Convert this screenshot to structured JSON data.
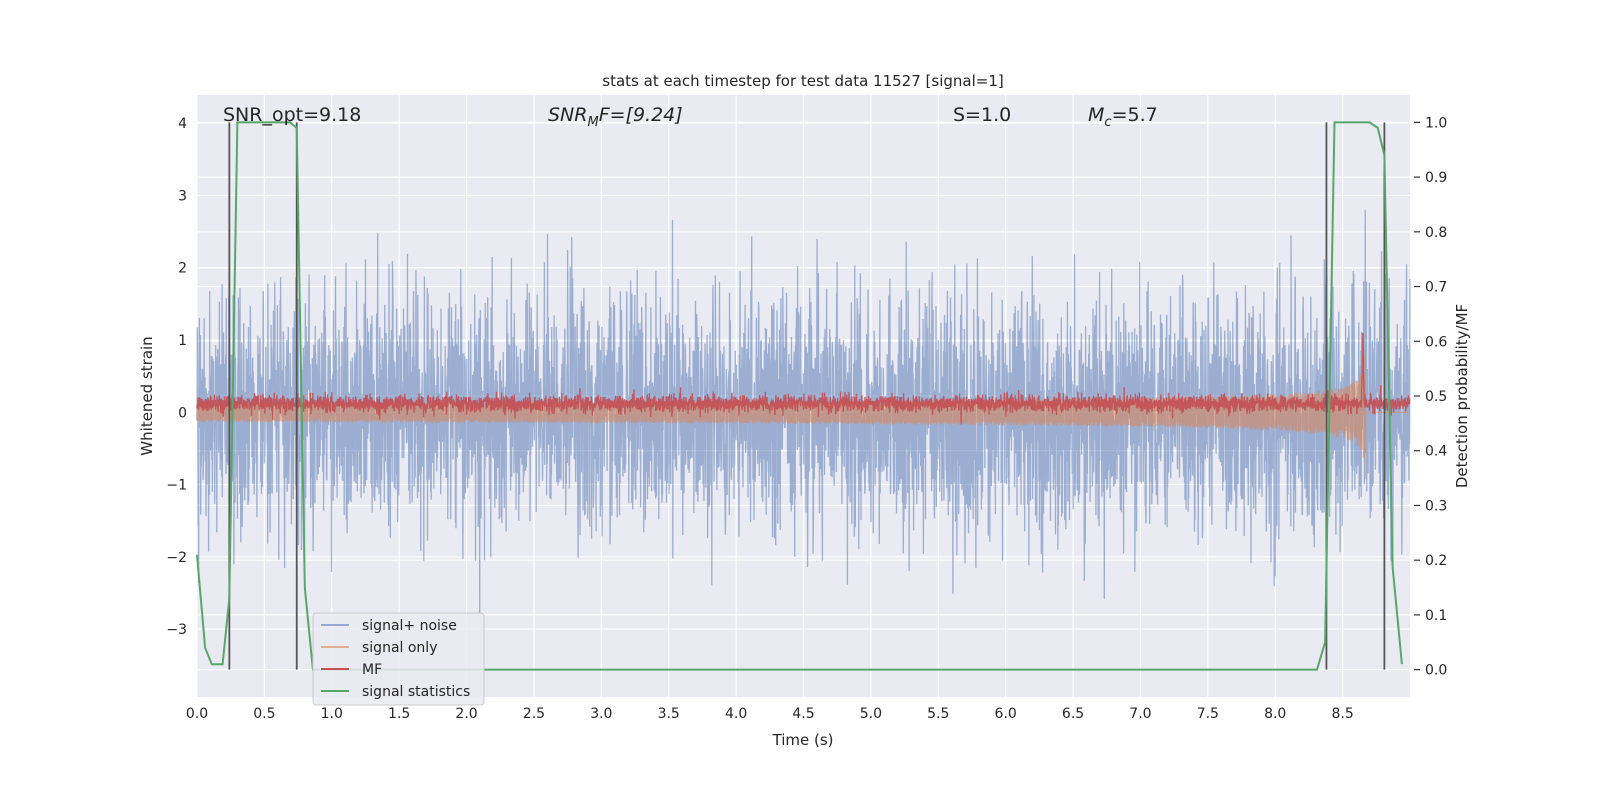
{
  "chart_data": {
    "type": "line",
    "title": "stats at each timestep for test data 11527 [signal=1]",
    "xlabel": "Time (s)",
    "ylabel": "Whitened strain",
    "ylabel_right": "Detection probability/MF",
    "xlim": [
      0,
      9.0
    ],
    "ylim": [
      -3.94,
      4.39
    ],
    "ylim_right": [
      -0.05,
      1.05
    ],
    "xticks": [
      "0.0",
      "0.5",
      "1.0",
      "1.5",
      "2.0",
      "2.5",
      "3.0",
      "3.5",
      "4.0",
      "4.5",
      "5.0",
      "5.5",
      "6.0",
      "6.5",
      "7.0",
      "7.5",
      "8.0",
      "8.5"
    ],
    "xtick_values": [
      0,
      0.5,
      1,
      1.5,
      2,
      2.5,
      3,
      3.5,
      4,
      4.5,
      5,
      5.5,
      6,
      6.5,
      7,
      7.5,
      8,
      8.5
    ],
    "yticks": [
      "4",
      "3",
      "2",
      "1",
      "0",
      "−1",
      "−2",
      "−3"
    ],
    "ytick_values": [
      4,
      3,
      2,
      1,
      0,
      -1,
      -2,
      -3
    ],
    "yticks_right": [
      "1.0",
      "0.9",
      "0.8",
      "0.7",
      "0.6",
      "0.5",
      "0.4",
      "0.3",
      "0.2",
      "0.1",
      "0.0"
    ],
    "ytick_values_right": [
      1.0,
      0.9,
      0.8,
      0.7,
      0.6,
      0.5,
      0.4,
      0.3,
      0.2,
      0.1,
      0.0
    ],
    "grid": true,
    "annotations": {
      "snr_opt": "SNR_opt=9.18",
      "snr_mf_main": "SNR",
      "snr_mf_sub": "M",
      "snr_mf_rest": "F=[9.24]",
      "s_value": "S=1.0",
      "mc_main": "M",
      "mc_sub": "c",
      "mc_rest": "=5.7"
    },
    "legend": {
      "placement": "lower-left",
      "entries": [
        "signal+ noise",
        "signal only",
        "MF",
        "signal statistics"
      ]
    },
    "series": [
      {
        "name": "signal+ noise",
        "color": "#4c72b0",
        "kind": "noise",
        "noise_std": 0.8,
        "n_samples": 4600,
        "axis": "left"
      },
      {
        "name": "signal only",
        "color": "#dd8452",
        "kind": "chirp",
        "coalescence_time": 8.67,
        "amplitude_at_8_3": 0.3,
        "peak": 1.0,
        "axis": "left"
      },
      {
        "name": "MF",
        "color": "#c44e52",
        "kind": "mf",
        "baseline": 0.12,
        "std": 0.06,
        "peak_time": 8.65,
        "peak": 1.0,
        "axis": "left"
      },
      {
        "name": "signal statistics",
        "color": "#55a868",
        "axis": "right",
        "x": [
          0.0,
          0.06,
          0.11,
          0.19,
          0.24,
          0.3,
          0.69,
          0.74,
          0.8,
          0.86,
          8.31,
          8.37,
          8.44,
          8.7,
          8.76,
          8.81,
          8.87,
          8.94
        ],
        "y": [
          0.21,
          0.04,
          0.01,
          0.01,
          0.13,
          1.0,
          1.0,
          0.99,
          0.15,
          0.0,
          0.0,
          0.05,
          1.0,
          1.0,
          0.99,
          0.94,
          0.19,
          0.01
        ]
      }
    ],
    "vertical_markers": [
      0.24,
      0.74,
      8.38,
      8.81
    ]
  }
}
